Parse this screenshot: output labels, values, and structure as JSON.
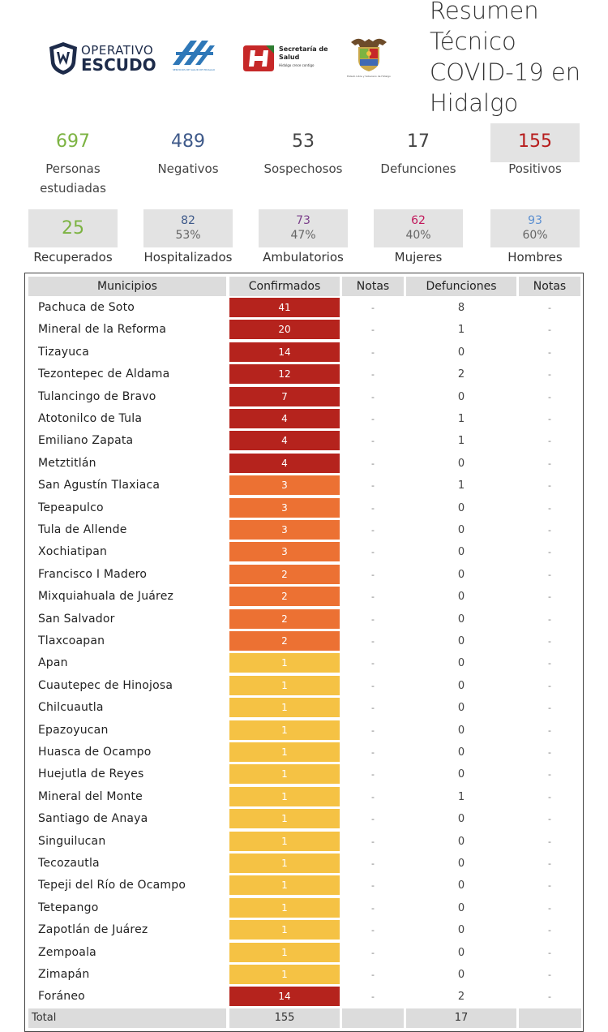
{
  "header": {
    "title_lines": [
      "Resumen",
      "Técnico",
      "COVID-19 en",
      "Hidalgo"
    ],
    "logos": {
      "escudo_line1": "OPERATIVO",
      "escudo_line2": "ESCUDO",
      "sshidalgo_caption": "SERVICIOS DE SALUD DE HIDALGO",
      "secretaria_line1": "Secretaría de",
      "secretaria_line2": "Salud",
      "secretaria_line3": "Hidalgo crece contigo",
      "gobierno_caption": "Estado Libre y Soberano de Hidalgo"
    }
  },
  "stats": [
    {
      "value": "697",
      "label": "Personas estudiadas",
      "color": "#7cb342"
    },
    {
      "value": "489",
      "label": "Negativos",
      "color": "#3f5a8a"
    },
    {
      "value": "53",
      "label": "Sospechosos",
      "color": "#444444"
    },
    {
      "value": "17",
      "label": "Defunciones",
      "color": "#444444"
    },
    {
      "value": "155",
      "label": "Positivos",
      "color": "#b71c1c"
    }
  ],
  "substats": [
    {
      "value": "25",
      "pct": "",
      "label": "Recuperados",
      "color": "#7cb342"
    },
    {
      "value": "82",
      "pct": "53%",
      "label": "Hospitalizados",
      "color": "#3f5a8a"
    },
    {
      "value": "73",
      "pct": "47%",
      "label": "Ambulatorios",
      "color": "#7b3f8a"
    },
    {
      "value": "62",
      "pct": "40%",
      "label": "Mujeres",
      "color": "#c2185b"
    },
    {
      "value": "93",
      "pct": "60%",
      "label": "Hombres",
      "color": "#5b8fd1"
    }
  ],
  "table": {
    "headers": [
      "Municipios",
      "Confirmados",
      "Notas",
      "Defunciones",
      "Notas"
    ],
    "rows": [
      {
        "municipio": "Pachuca de Soto",
        "confirmados": "41",
        "notas1": "-",
        "defunciones": "8",
        "notas2": "-",
        "level": "high"
      },
      {
        "municipio": "Mineral de la Reforma",
        "confirmados": "20",
        "notas1": "-",
        "defunciones": "1",
        "notas2": "-",
        "level": "high"
      },
      {
        "municipio": "Tizayuca",
        "confirmados": "14",
        "notas1": "-",
        "defunciones": "0",
        "notas2": "-",
        "level": "high"
      },
      {
        "municipio": "Tezontepec de Aldama",
        "confirmados": "12",
        "notas1": "-",
        "defunciones": "2",
        "notas2": "-",
        "level": "high"
      },
      {
        "municipio": "Tulancingo de Bravo",
        "confirmados": "7",
        "notas1": "-",
        "defunciones": "0",
        "notas2": "-",
        "level": "high"
      },
      {
        "municipio": "Atotonilco de Tula",
        "confirmados": "4",
        "notas1": "-",
        "defunciones": "1",
        "notas2": "-",
        "level": "high"
      },
      {
        "municipio": "Emiliano Zapata",
        "confirmados": "4",
        "notas1": "-",
        "defunciones": "1",
        "notas2": "-",
        "level": "high"
      },
      {
        "municipio": "Metztitlán",
        "confirmados": "4",
        "notas1": "-",
        "defunciones": "0",
        "notas2": "-",
        "level": "high"
      },
      {
        "municipio": "San Agustín Tlaxiaca",
        "confirmados": "3",
        "notas1": "-",
        "defunciones": "1",
        "notas2": "-",
        "level": "mid"
      },
      {
        "municipio": "Tepeapulco",
        "confirmados": "3",
        "notas1": "-",
        "defunciones": "0",
        "notas2": "-",
        "level": "mid"
      },
      {
        "municipio": "Tula de Allende",
        "confirmados": "3",
        "notas1": "-",
        "defunciones": "0",
        "notas2": "-",
        "level": "mid"
      },
      {
        "municipio": "Xochiatipan",
        "confirmados": "3",
        "notas1": "-",
        "defunciones": "0",
        "notas2": "-",
        "level": "mid"
      },
      {
        "municipio": "Francisco I Madero",
        "confirmados": "2",
        "notas1": "-",
        "defunciones": "0",
        "notas2": "-",
        "level": "mid"
      },
      {
        "municipio": "Mixquiahuala de Juárez",
        "confirmados": "2",
        "notas1": "-",
        "defunciones": "0",
        "notas2": "-",
        "level": "mid"
      },
      {
        "municipio": "San Salvador",
        "confirmados": "2",
        "notas1": "-",
        "defunciones": "0",
        "notas2": "-",
        "level": "mid"
      },
      {
        "municipio": "Tlaxcoapan",
        "confirmados": "2",
        "notas1": "-",
        "defunciones": "0",
        "notas2": "-",
        "level": "mid"
      },
      {
        "municipio": "Apan",
        "confirmados": "1",
        "notas1": "-",
        "defunciones": "0",
        "notas2": "-",
        "level": "low"
      },
      {
        "municipio": "Cuautepec de Hinojosa",
        "confirmados": "1",
        "notas1": "-",
        "defunciones": "0",
        "notas2": "-",
        "level": "low"
      },
      {
        "municipio": "Chilcuautla",
        "confirmados": "1",
        "notas1": "-",
        "defunciones": "0",
        "notas2": "-",
        "level": "low"
      },
      {
        "municipio": "Epazoyucan",
        "confirmados": "1",
        "notas1": "-",
        "defunciones": "0",
        "notas2": "-",
        "level": "low"
      },
      {
        "municipio": "Huasca de Ocampo",
        "confirmados": "1",
        "notas1": "-",
        "defunciones": "0",
        "notas2": "-",
        "level": "low"
      },
      {
        "municipio": "Huejutla de Reyes",
        "confirmados": "1",
        "notas1": "-",
        "defunciones": "0",
        "notas2": "-",
        "level": "low"
      },
      {
        "municipio": "Mineral del Monte",
        "confirmados": "1",
        "notas1": "-",
        "defunciones": "1",
        "notas2": "-",
        "level": "low"
      },
      {
        "municipio": "Santiago de Anaya",
        "confirmados": "1",
        "notas1": "-",
        "defunciones": "0",
        "notas2": "-",
        "level": "low"
      },
      {
        "municipio": "Singuilucan",
        "confirmados": "1",
        "notas1": "-",
        "defunciones": "0",
        "notas2": "-",
        "level": "low"
      },
      {
        "municipio": "Tecozautla",
        "confirmados": "1",
        "notas1": "-",
        "defunciones": "0",
        "notas2": "-",
        "level": "low"
      },
      {
        "municipio": "Tepeji del Río de Ocampo",
        "confirmados": "1",
        "notas1": "-",
        "defunciones": "0",
        "notas2": "-",
        "level": "low"
      },
      {
        "municipio": "Tetepango",
        "confirmados": "1",
        "notas1": "-",
        "defunciones": "0",
        "notas2": "-",
        "level": "low"
      },
      {
        "municipio": "Zapotlán de Juárez",
        "confirmados": "1",
        "notas1": "-",
        "defunciones": "0",
        "notas2": "-",
        "level": "low"
      },
      {
        "municipio": "Zempoala",
        "confirmados": "1",
        "notas1": "-",
        "defunciones": "0",
        "notas2": "-",
        "level": "low"
      },
      {
        "municipio": "Zimapán",
        "confirmados": "1",
        "notas1": "-",
        "defunciones": "0",
        "notas2": "-",
        "level": "low"
      },
      {
        "municipio": "Foráneo",
        "confirmados": "14",
        "notas1": "-",
        "defunciones": "2",
        "notas2": "-",
        "level": "high"
      }
    ],
    "total": {
      "label": "Total",
      "confirmados": "155",
      "defunciones": "17"
    },
    "level_colors": {
      "high": "#b5231d",
      "mid": "#ec7133",
      "low": "#f5c244"
    },
    "low_text_color": "#ffffff"
  }
}
